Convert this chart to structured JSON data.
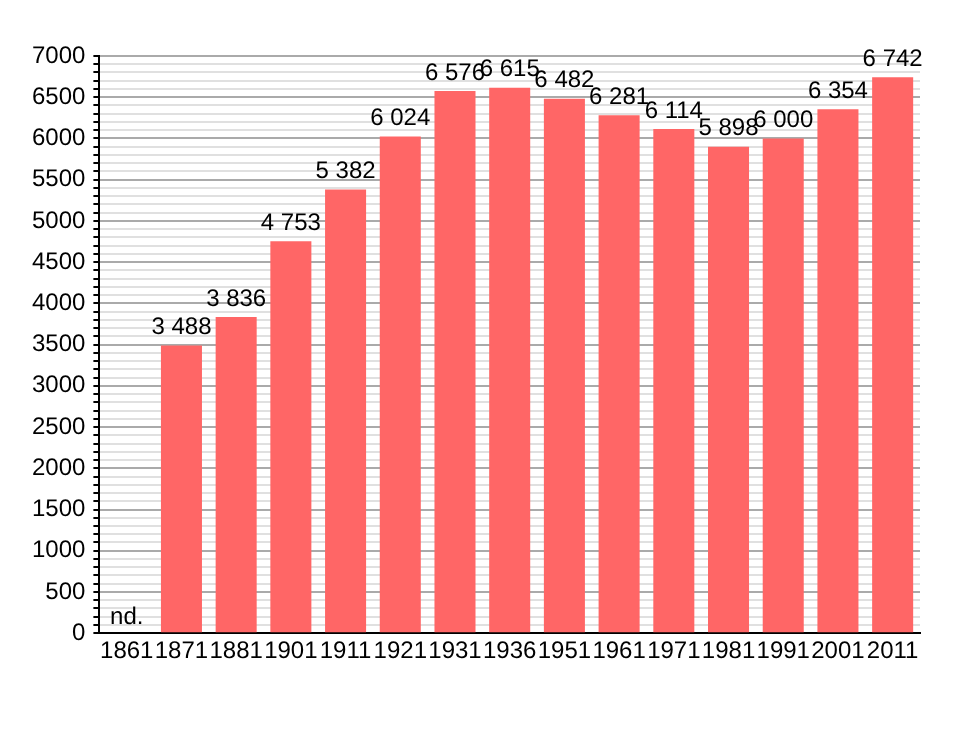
{
  "chart_data": {
    "type": "bar",
    "categories": [
      "1861",
      "1871",
      "1881",
      "1901",
      "1911",
      "1921",
      "1931",
      "1936",
      "1951",
      "1961",
      "1971",
      "1981",
      "1991",
      "2001",
      "2011"
    ],
    "values": [
      null,
      3488,
      3836,
      4753,
      5382,
      6024,
      6576,
      6615,
      6482,
      6281,
      6114,
      5898,
      6000,
      6354,
      6742
    ],
    "value_labels": [
      "nd.",
      "3 488",
      "3 836",
      "4 753",
      "5 382",
      "6 024",
      "6 576",
      "6 615",
      "6 482",
      "6 281",
      "6 114",
      "5 898",
      "6 000",
      "6 354",
      "6 742"
    ],
    "color": "#ff6666",
    "ylim": [
      0,
      7000
    ],
    "yticks": [
      0,
      {
        "value": 100,
        "label": null
      },
      {
        "value": 200,
        "label": null
      },
      {
        "value": 300,
        "label": null
      },
      {
        "value": 400,
        "label": null
      },
      500,
      {
        "value": 600,
        "label": null
      },
      {
        "value": 700,
        "label": null
      },
      {
        "value": 800,
        "label": null
      },
      {
        "value": 900,
        "label": null
      },
      1000,
      {
        "value": 1100,
        "label": null
      },
      {
        "value": 1200,
        "label": null
      },
      {
        "value": 1300,
        "label": null
      },
      {
        "value": 1400,
        "label": null
      },
      1500,
      {
        "value": 1600,
        "label": null
      },
      {
        "value": 1700,
        "label": null
      },
      {
        "value": 1800,
        "label": null
      },
      {
        "value": 1900,
        "label": null
      },
      2000,
      {
        "value": 2100,
        "label": null
      },
      {
        "value": 2200,
        "label": null
      },
      {
        "value": 2300,
        "label": null
      },
      {
        "value": 2400,
        "label": null
      },
      2500,
      {
        "value": 2600,
        "label": null
      },
      {
        "value": 2700,
        "label": null
      },
      {
        "value": 2800,
        "label": null
      },
      {
        "value": 2900,
        "label": null
      },
      3000,
      {
        "value": 3100,
        "label": null
      },
      {
        "value": 3200,
        "label": null
      },
      {
        "value": 3300,
        "label": null
      },
      {
        "value": 3400,
        "label": null
      },
      3500,
      {
        "value": 3600,
        "label": null
      },
      {
        "value": 3700,
        "label": null
      },
      {
        "value": 3800,
        "label": null
      },
      {
        "value": 3900,
        "label": null
      },
      4000,
      {
        "value": 4100,
        "label": null
      },
      {
        "value": 4200,
        "label": null
      },
      {
        "value": 4300,
        "label": null
      },
      {
        "value": 4400,
        "label": null
      },
      4500,
      {
        "value": 4600,
        "label": null
      },
      {
        "value": 4700,
        "label": null
      },
      {
        "value": 4800,
        "label": null
      },
      {
        "value": 4900,
        "label": null
      },
      5000,
      {
        "value": 5100,
        "label": null
      },
      {
        "value": 5200,
        "label": null
      },
      {
        "value": 5300,
        "label": null
      },
      {
        "value": 5400,
        "label": null
      },
      5500,
      {
        "value": 5600,
        "label": null
      },
      {
        "value": 5700,
        "label": null
      },
      {
        "value": 5800,
        "label": null
      },
      {
        "value": 5900,
        "label": null
      },
      6000,
      {
        "value": 6100,
        "label": null
      },
      {
        "value": 6200,
        "label": null
      },
      {
        "value": 6300,
        "label": null
      },
      {
        "value": 6400,
        "label": null
      },
      6500,
      {
        "value": 6600,
        "label": null
      },
      {
        "value": 6700,
        "label": null
      },
      {
        "value": 6800,
        "label": null
      },
      {
        "value": 6900,
        "label": null
      },
      7000
    ],
    "grid": "y",
    "legend": false
  }
}
